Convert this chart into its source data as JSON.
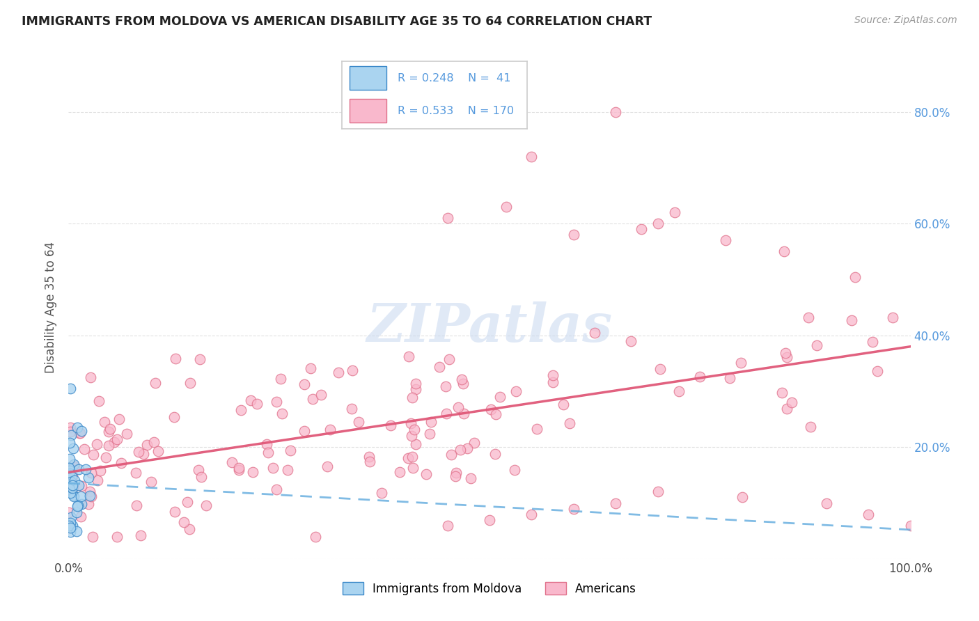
{
  "title": "IMMIGRANTS FROM MOLDOVA VS AMERICAN DISABILITY AGE 35 TO 64 CORRELATION CHART",
  "source": "Source: ZipAtlas.com",
  "ylabel": "Disability Age 35 to 64",
  "xlim": [
    0,
    1.0
  ],
  "ylim": [
    0,
    0.9
  ],
  "x_tick_positions": [
    0.0,
    0.25,
    0.5,
    0.75,
    1.0
  ],
  "x_tick_labels": [
    "0.0%",
    "",
    "",
    "",
    "100.0%"
  ],
  "y_tick_positions": [
    0.0,
    0.2,
    0.4,
    0.6,
    0.8
  ],
  "y_tick_labels_right": [
    "",
    "20.0%",
    "40.0%",
    "60.0%",
    "80.0%"
  ],
  "blue_fill": "#aad4f0",
  "blue_edge": "#3a88c8",
  "pink_fill": "#f9b8cc",
  "pink_edge": "#e0708a",
  "blue_line_color": "#6ab0e0",
  "pink_line_color": "#e05878",
  "right_axis_color": "#5599dd",
  "watermark_color": "#c8d8f0",
  "grid_color": "#dddddd",
  "title_color": "#222222",
  "source_color": "#999999",
  "ylabel_color": "#555555",
  "xtick_color": "#444444"
}
